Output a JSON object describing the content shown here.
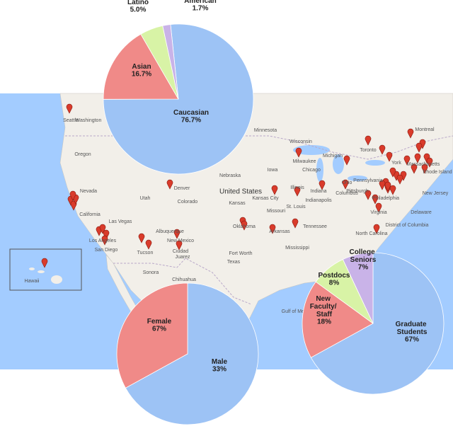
{
  "chart_data": [
    {
      "type": "pie",
      "categories": [
        "Caucasian",
        "Asian",
        "Hispanic/ Latino",
        "African American"
      ],
      "values": [
        76.7,
        16.7,
        5.0,
        1.7
      ],
      "value_labels": [
        "76.7%",
        "16.7%",
        "5.0%",
        "1.7%"
      ],
      "colors": [
        "#9dc3f5",
        "#f08a88",
        "#d8f3a6",
        "#c9b3e8"
      ]
    },
    {
      "type": "pie",
      "categories": [
        "Female",
        "Male"
      ],
      "values": [
        67,
        33
      ],
      "value_labels": [
        "67%",
        "33%"
      ],
      "colors": [
        "#9dc3f5",
        "#f08a88"
      ]
    },
    {
      "type": "pie",
      "categories": [
        "Graduate Students",
        "New Faculty/ Staff",
        "Postdocs",
        "College Seniors"
      ],
      "values": [
        67,
        18,
        8,
        7
      ],
      "value_labels": [
        "67%",
        "18%",
        "8%",
        "7%"
      ],
      "colors": [
        "#9dc3f5",
        "#f08a88",
        "#d8f3a6",
        "#c9b3e8"
      ]
    }
  ],
  "map": {
    "labels": [
      "United States",
      "Seattle",
      "Washington",
      "Oregon",
      "Nevada",
      "California",
      "Utah",
      "Colorado",
      "Denver",
      "Albuquerque",
      "New Mexico",
      "Las Vegas",
      "Los Angeles",
      "San Diego",
      "Tucson",
      "Ciudad",
      "Juarez",
      "Sonora",
      "Chihuahua",
      "Minnesota",
      "Wisconsin",
      "Milwaukee",
      "Chicago",
      "Michigan",
      "Nebraska",
      "Iowa",
      "Kansas",
      "Kansas City",
      "Missouri",
      "Illinois",
      "St. Louis",
      "Indiana",
      "Indianapolis",
      "Ohio",
      "Columbus",
      "Oklahoma",
      "Arkansas",
      "Tennessee",
      "Mississippi",
      "Texas",
      "Fort Worth",
      "Toronto",
      "Montreal",
      "Pennsylvania",
      "Pittsburgh",
      "York",
      "Philadelphia",
      "New Jersey",
      "Rhode Island",
      "Massachusetts",
      "Virginia",
      "North Carolina",
      "Delaware",
      "District of Columbia",
      "Hawaii",
      "Gulf of Mexico"
    ]
  }
}
